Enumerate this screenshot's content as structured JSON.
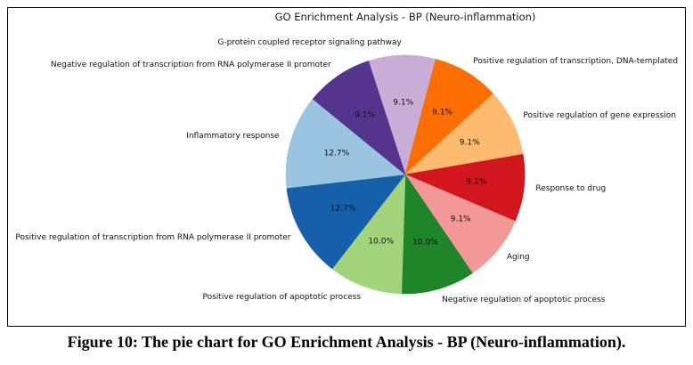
{
  "figure": {
    "title": "GO Enrichment Analysis - BP (Neuro-inflammation)",
    "caption": "Figure 10: The pie chart for GO Enrichment Analysis - BP (Neuro-inflammation)."
  },
  "chart_data": {
    "type": "pie",
    "title": "GO Enrichment Analysis - BP (Neuro-inflammation)",
    "direction": "clockwise",
    "start_angle_deg_from_top": -18,
    "legend": "none",
    "units": "percent",
    "slices": [
      {
        "label": "G-protein coupled receptor signaling pathway",
        "value": 9.1,
        "pct_label": "9.1%",
        "color": "#c8add6"
      },
      {
        "label": "Positive regulation of transcription, DNA-templated",
        "value": 9.1,
        "pct_label": "9.1%",
        "color": "#fd6e02"
      },
      {
        "label": "Positive regulation of gene expression",
        "value": 9.1,
        "pct_label": "9.1%",
        "color": "#fcbb6f"
      },
      {
        "label": "Response to drug",
        "value": 9.1,
        "pct_label": "9.1%",
        "color": "#d2161e"
      },
      {
        "label": "Aging",
        "value": 9.1,
        "pct_label": "9.1%",
        "color": "#f49897"
      },
      {
        "label": "Negative regulation of apoptotic process",
        "value": 10.0,
        "pct_label": "10.0%",
        "color": "#1f8529"
      },
      {
        "label": "Positive regulation of apoptotic process",
        "value": 10.0,
        "pct_label": "10.0%",
        "color": "#a2d47c"
      },
      {
        "label": "Positive regulation of transcription from RNA polymerase II promoter",
        "value": 12.7,
        "pct_label": "12.7%",
        "color": "#1560a8"
      },
      {
        "label": "Inflammatory response",
        "value": 12.7,
        "pct_label": "12.7%",
        "color": "#99c5e0"
      },
      {
        "label": "Negative regulation of transcription from RNA polymerase II promoter",
        "value": 9.1,
        "pct_label": "9.1%",
        "color": "#55348d"
      }
    ]
  }
}
